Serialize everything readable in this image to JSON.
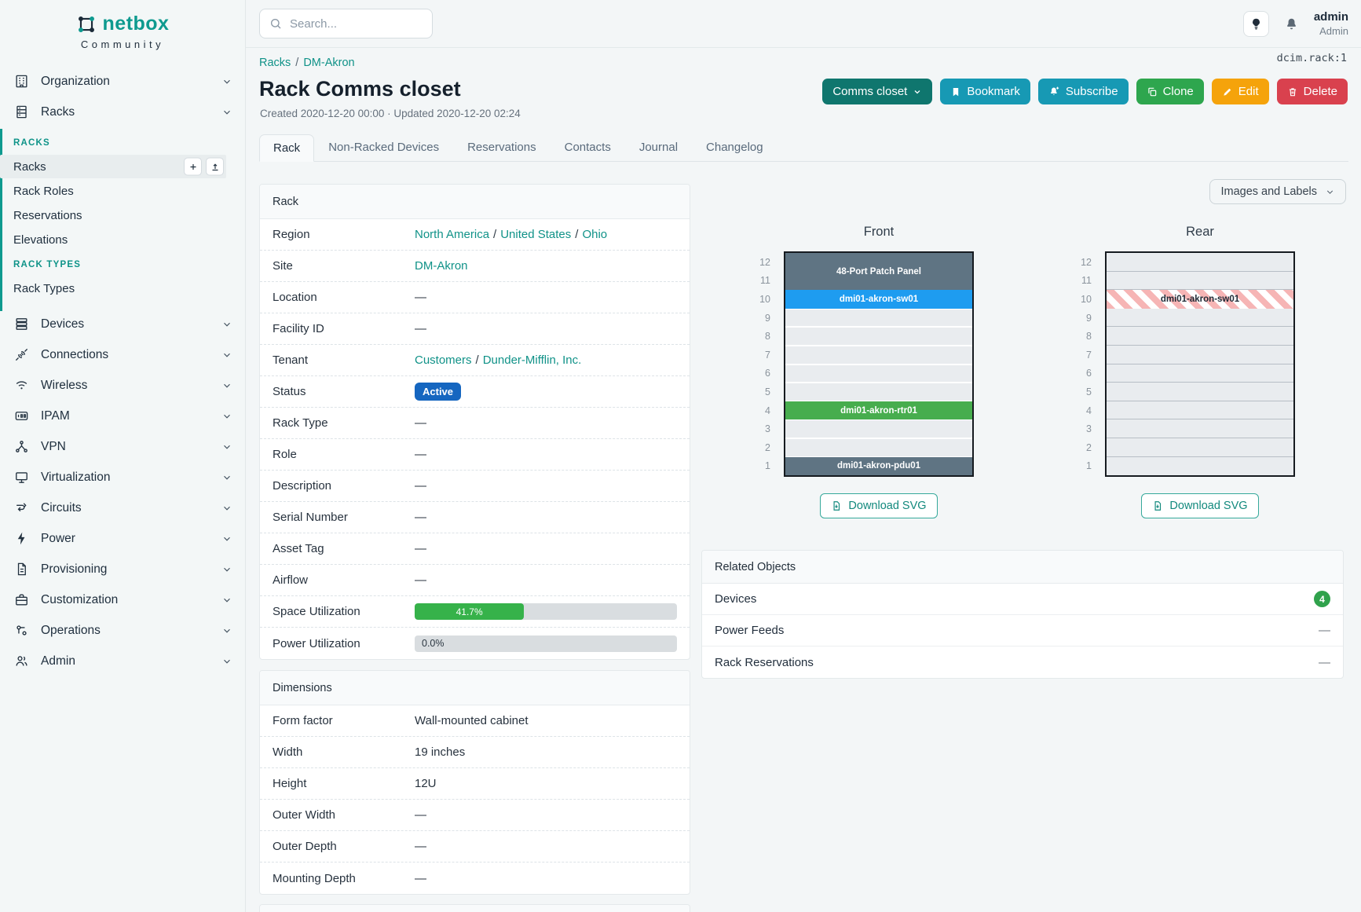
{
  "brand": {
    "name": "netbox",
    "tagline": "Community"
  },
  "topbar": {
    "search_placeholder": "Search...",
    "user": {
      "name": "admin",
      "role": "Admin"
    }
  },
  "object_id": "dcim.rack:1",
  "separator": "/",
  "sidebar": {
    "top_items": [
      {
        "label": "Organization"
      },
      {
        "label": "Racks"
      }
    ],
    "racks_menu": {
      "sections": [
        {
          "header": "RACKS",
          "items": [
            {
              "label": "Racks"
            },
            {
              "label": "Rack Roles"
            },
            {
              "label": "Reservations"
            },
            {
              "label": "Elevations"
            }
          ]
        },
        {
          "header": "RACK TYPES",
          "items": [
            {
              "label": "Rack Types"
            }
          ]
        }
      ]
    },
    "items": [
      {
        "label": "Devices"
      },
      {
        "label": "Connections"
      },
      {
        "label": "Wireless"
      },
      {
        "label": "IPAM"
      },
      {
        "label": "VPN"
      },
      {
        "label": "Virtualization"
      },
      {
        "label": "Circuits"
      },
      {
        "label": "Power"
      },
      {
        "label": "Provisioning"
      },
      {
        "label": "Customization"
      },
      {
        "label": "Operations"
      },
      {
        "label": "Admin"
      }
    ]
  },
  "page": {
    "breadcrumb": {
      "part1": "Racks",
      "part2": "DM-Akron"
    },
    "title": "Rack Comms closet",
    "meta": "Created 2020-12-20 00:00 · Updated 2020-12-20 02:24",
    "actions": {
      "name_menu": "Comms closet",
      "bookmark": "Bookmark",
      "subscribe": "Subscribe",
      "clone": "Clone",
      "edit": "Edit",
      "delete": "Delete"
    },
    "tabs": [
      {
        "label": "Rack"
      },
      {
        "label": "Non-Racked Devices"
      },
      {
        "label": "Reservations"
      },
      {
        "label": "Contacts"
      },
      {
        "label": "Journal"
      },
      {
        "label": "Changelog"
      }
    ]
  },
  "rack_panel": {
    "title": "Rack",
    "region": {
      "label": "Region",
      "links": [
        "North America",
        "United States",
        "Ohio"
      ]
    },
    "site": {
      "label": "Site",
      "link": "DM-Akron"
    },
    "location": {
      "label": "Location",
      "value": "—"
    },
    "facility_id": {
      "label": "Facility ID",
      "value": "—"
    },
    "tenant": {
      "label": "Tenant",
      "links": [
        "Customers",
        "Dunder-Mifflin, Inc."
      ]
    },
    "status": {
      "label": "Status",
      "badge": "Active"
    },
    "rack_type": {
      "label": "Rack Type",
      "value": "—"
    },
    "role": {
      "label": "Role",
      "value": "—"
    },
    "description": {
      "label": "Description",
      "value": "—"
    },
    "serial_number": {
      "label": "Serial Number",
      "value": "—"
    },
    "asset_tag": {
      "label": "Asset Tag",
      "value": "—"
    },
    "airflow": {
      "label": "Airflow",
      "value": "—"
    },
    "space_utilization": {
      "label": "Space Utilization",
      "percent": 41.7,
      "text": "41.7%"
    },
    "power_utilization": {
      "label": "Power Utilization",
      "percent": 0.0,
      "text": "0.0%"
    }
  },
  "dimensions_panel": {
    "title": "Dimensions",
    "form_factor": {
      "label": "Form factor",
      "value": "Wall-mounted cabinet"
    },
    "width": {
      "label": "Width",
      "value": "19 inches"
    },
    "height": {
      "label": "Height",
      "value": "12U"
    },
    "outer_width": {
      "label": "Outer Width",
      "value": "—"
    },
    "outer_depth": {
      "label": "Outer Depth",
      "value": "—"
    },
    "mounting_depth": {
      "label": "Mounting Depth",
      "value": "—"
    }
  },
  "elevations": {
    "view_menu_label": "Images and Labels",
    "units_total": 12,
    "front": {
      "title": "Front",
      "download_label": "Download SVG",
      "slots": [
        {
          "type": "device",
          "label": "48-Port Patch Panel",
          "units": 2,
          "color": "#5f7483"
        },
        {
          "type": "device",
          "label": "dmi01-akron-sw01",
          "units": 1,
          "color": "#1e9cf0"
        },
        {
          "type": "empty",
          "units": 5
        },
        {
          "type": "device",
          "label": "dmi01-akron-rtr01",
          "units": 1,
          "color": "#47ad4e"
        },
        {
          "type": "empty",
          "units": 2
        },
        {
          "type": "device",
          "label": "dmi01-akron-pdu01",
          "units": 1,
          "color": "#5f7483"
        }
      ]
    },
    "rear": {
      "title": "Rear",
      "download_label": "Download SVG",
      "slots": [
        {
          "type": "empty",
          "units": 2
        },
        {
          "type": "hatched",
          "label": "dmi01-akron-sw01",
          "units": 1
        },
        {
          "type": "empty",
          "units": 9
        }
      ]
    }
  },
  "related_objects": {
    "title": "Related Objects",
    "rows": [
      {
        "label": "Devices",
        "count": "4"
      },
      {
        "label": "Power Feeds",
        "value": "—"
      },
      {
        "label": "Rack Reservations",
        "value": "—"
      }
    ]
  },
  "colors": {
    "accent_teal": "#0e9a8f",
    "button_name": "#0f766e",
    "button_info": "#1799b4",
    "button_clone": "#2ea64e",
    "button_edit": "#f5a30b",
    "button_delete": "#d9414e",
    "status_active": "#1566c0",
    "progress_green": "#36b24a",
    "count_badge_green": "#30a24c"
  }
}
